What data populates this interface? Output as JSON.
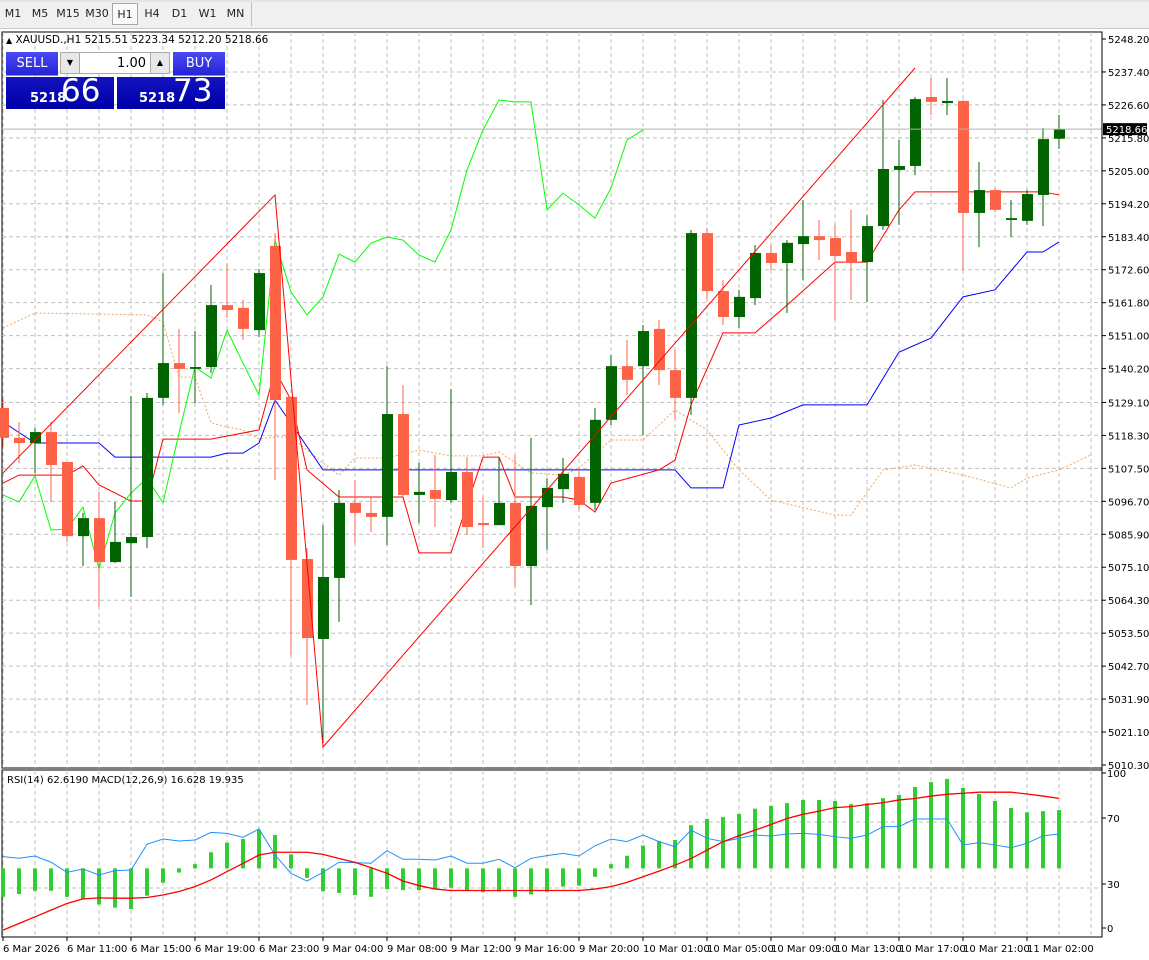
{
  "toolbar": {
    "timeframes": [
      "M1",
      "M5",
      "M15",
      "M30",
      "H1",
      "H4",
      "D1",
      "W1",
      "MN"
    ],
    "active": "H1"
  },
  "header": {
    "symbol": "XAUUSD.,H1",
    "open": "5215.51",
    "high": "5223.34",
    "low": "5212.20",
    "close": "5218.66",
    "collapse_icon": "triangle-up-icon"
  },
  "trade_panel": {
    "sell_label": "SELL",
    "buy_label": "BUY",
    "lot": "1.00",
    "sell_price_main": "5218",
    "sell_price_pips": "66",
    "buy_price_main": "5218",
    "buy_price_pips": "73"
  },
  "colors": {
    "bull": "#006400",
    "bear": "#FF6347",
    "panel_blue": "#0000c0",
    "zigzag": "#FF0000",
    "red_line": "#FF0000",
    "blue_line": "#0000FF",
    "green_line": "#00FF00",
    "orange_dotted": "#F4A460",
    "rsi": "#1E90FF",
    "macd_hist": "#32CD32",
    "macd_signal": "#FF0000"
  },
  "price_axis": {
    "labels": [
      "5248.20",
      "5237.40",
      "5226.60",
      "5215.80",
      "5205.00",
      "5194.20",
      "5183.40",
      "5172.60",
      "5161.80",
      "5151.00",
      "5140.20",
      "5129.10",
      "5118.30",
      "5107.50",
      "5096.70",
      "5085.90",
      "5075.10",
      "5064.30",
      "5053.50",
      "5042.70",
      "5031.90",
      "5021.10",
      "5010.30"
    ],
    "current_price": "5218.66",
    "range": [
      5010.3,
      5248.2
    ]
  },
  "time_axis": {
    "labels": [
      "6 Mar 2026",
      "6 Mar 11:00",
      "6 Mar 15:00",
      "6 Mar 19:00",
      "6 Mar 23:00",
      "9 Mar 04:00",
      "9 Mar 08:00",
      "9 Mar 12:00",
      "9 Mar 16:00",
      "9 Mar 20:00",
      "10 Mar 01:00",
      "10 Mar 05:00",
      "10 Mar 09:00",
      "10 Mar 13:00",
      "10 Mar 17:00",
      "10 Mar 21:00",
      "11 Mar 02:00"
    ],
    "label_every_bars": 4
  },
  "chart_data": {
    "type": "candlestick",
    "timeframe": "H1",
    "ohlc": [
      [
        5127.3,
        5130.2,
        5114.5,
        5117.5
      ],
      [
        5117.5,
        5122.7,
        5109.3,
        5115.8
      ],
      [
        5115.8,
        5120.7,
        5106.0,
        5119.4
      ],
      [
        5119.4,
        5122.7,
        5096.5,
        5108.6
      ],
      [
        5109.6,
        5109.6,
        5083.4,
        5085.3
      ],
      [
        5085.3,
        5092.9,
        5075.5,
        5091.2
      ],
      [
        5091.2,
        5099.8,
        5062.1,
        5076.8
      ],
      [
        5076.8,
        5096.5,
        5076.5,
        5083.4
      ],
      [
        5083.0,
        5131.2,
        5065.4,
        5085.0
      ],
      [
        5085.0,
        5132.2,
        5081.4,
        5130.6
      ],
      [
        5130.6,
        5171.5,
        5128.3,
        5142.0
      ],
      [
        5142.0,
        5153.2,
        5125.6,
        5140.1
      ],
      [
        5140.1,
        5152.5,
        5128.9,
        5140.7
      ],
      [
        5140.7,
        5167.6,
        5138.8,
        5161.0
      ],
      [
        5161.0,
        5174.5,
        5156.8,
        5159.4
      ],
      [
        5160.1,
        5162.7,
        5149.6,
        5153.2
      ],
      [
        5152.8,
        5172.8,
        5150.5,
        5171.5
      ],
      [
        5180.4,
        5184.6,
        5103.7,
        5129.9
      ],
      [
        5130.9,
        5130.9,
        5046.3,
        5077.5
      ],
      [
        5077.8,
        5081.4,
        5030.0,
        5051.9
      ],
      [
        5051.6,
        5088.9,
        5017.5,
        5071.9
      ],
      [
        5071.6,
        5100.4,
        5057.2,
        5096.2
      ],
      [
        5096.2,
        5103.7,
        5083.0,
        5092.9
      ],
      [
        5092.9,
        5098.4,
        5086.6,
        5091.6
      ],
      [
        5091.6,
        5141.0,
        5082.4,
        5125.3
      ],
      [
        5125.3,
        5134.8,
        5098.1,
        5098.8
      ],
      [
        5098.8,
        5109.3,
        5089.6,
        5099.8
      ],
      [
        5100.4,
        5111.9,
        5088.3,
        5097.5
      ],
      [
        5097.1,
        5133.5,
        5096.2,
        5106.3
      ],
      [
        5106.3,
        5111.2,
        5085.7,
        5088.3
      ],
      [
        5089.6,
        5098.4,
        5081.4,
        5088.9
      ],
      [
        5088.9,
        5111.2,
        5088.9,
        5096.2
      ],
      [
        5096.2,
        5111.9,
        5068.6,
        5075.5
      ],
      [
        5075.5,
        5117.5,
        5062.7,
        5095.2
      ],
      [
        5094.8,
        5104.3,
        5080.8,
        5101.1
      ],
      [
        5100.7,
        5110.9,
        5096.2,
        5105.7
      ],
      [
        5104.7,
        5107.0,
        5093.9,
        5095.5
      ],
      [
        5096.2,
        5127.3,
        5093.9,
        5123.4
      ],
      [
        5123.4,
        5144.6,
        5121.7,
        5141.0
      ],
      [
        5141.0,
        5149.6,
        5131.5,
        5136.5
      ],
      [
        5141.0,
        5154.5,
        5118.4,
        5152.5
      ],
      [
        5153.2,
        5156.1,
        5134.8,
        5139.7
      ],
      [
        5139.7,
        5146.3,
        5123.4,
        5130.6
      ],
      [
        5130.6,
        5185.6,
        5125.0,
        5184.6
      ],
      [
        5184.6,
        5186.3,
        5162.7,
        5165.6
      ],
      [
        5165.6,
        5169.2,
        5154.5,
        5157.1
      ],
      [
        5157.1,
        5166.0,
        5153.5,
        5163.7
      ],
      [
        5163.3,
        5180.7,
        5161.0,
        5178.1
      ],
      [
        5178.1,
        5180.7,
        5172.5,
        5174.8
      ],
      [
        5174.8,
        5182.3,
        5158.4,
        5181.4
      ],
      [
        5181.0,
        5195.4,
        5169.2,
        5183.6
      ],
      [
        5183.6,
        5188.9,
        5175.8,
        5182.3
      ],
      [
        5183.0,
        5187.3,
        5156.1,
        5177.1
      ],
      [
        5178.4,
        5192.2,
        5162.7,
        5175.1
      ],
      [
        5175.1,
        5190.5,
        5162.0,
        5186.9
      ],
      [
        5186.9,
        5228.2,
        5185.6,
        5205.6
      ],
      [
        5205.3,
        5215.1,
        5187.3,
        5206.6
      ],
      [
        5206.6,
        5229.2,
        5203.6,
        5228.5
      ],
      [
        5229.2,
        5235.4,
        5223.3,
        5227.6
      ],
      [
        5227.2,
        5235.4,
        5223.3,
        5227.9
      ],
      [
        5227.9,
        5228.2,
        5172.5,
        5191.2
      ],
      [
        5191.2,
        5207.9,
        5180.0,
        5198.7
      ],
      [
        5198.7,
        5199.4,
        5191.5,
        5192.2
      ],
      [
        5188.9,
        5195.4,
        5183.3,
        5189.5
      ],
      [
        5188.6,
        5198.7,
        5187.3,
        5197.4
      ],
      [
        5197.1,
        5219.0,
        5186.9,
        5215.4
      ],
      [
        5215.51,
        5223.34,
        5212.2,
        5218.66
      ]
    ],
    "overlays": {
      "zigzag": [
        [
          0,
          5106.0
        ],
        [
          17,
          5197.1
        ],
        [
          20,
          5016.2
        ],
        [
          57,
          5238.7
        ]
      ],
      "red_line": [
        [
          0,
          5102.7
        ],
        [
          1,
          5105.3
        ],
        [
          4,
          5105.3
        ],
        [
          5,
          5108.3
        ],
        [
          6,
          5102.1
        ],
        [
          8,
          5096.8
        ],
        [
          9,
          5096.8
        ],
        [
          10,
          5117.1
        ],
        [
          13,
          5117.1
        ],
        [
          16,
          5120.1
        ],
        [
          17,
          5139.7
        ],
        [
          18,
          5129.9
        ],
        [
          19,
          5107.0
        ],
        [
          21,
          5098.1
        ],
        [
          25,
          5098.1
        ],
        [
          26,
          5079.8
        ],
        [
          28,
          5079.8
        ],
        [
          30,
          5111.2
        ],
        [
          31,
          5111.2
        ],
        [
          32,
          5098.1
        ],
        [
          35,
          5098.1
        ],
        [
          36,
          5097.1
        ],
        [
          37,
          5093.2
        ],
        [
          38,
          5102.7
        ],
        [
          41,
          5107.0
        ],
        [
          42,
          5110.2
        ],
        [
          43,
          5128.3
        ],
        [
          45,
          5151.9
        ],
        [
          47,
          5151.9
        ],
        [
          49,
          5161.0
        ],
        [
          52,
          5175.1
        ],
        [
          54,
          5175.1
        ],
        [
          56,
          5192.2
        ],
        [
          57,
          5198.1
        ],
        [
          65,
          5198.1
        ],
        [
          66,
          5197.1
        ]
      ],
      "blue_line": [
        [
          0,
          5122.7
        ],
        [
          2,
          5115.8
        ],
        [
          6,
          5115.8
        ],
        [
          7,
          5111.2
        ],
        [
          13,
          5111.2
        ],
        [
          14,
          5112.5
        ],
        [
          15,
          5112.5
        ],
        [
          16,
          5115.8
        ],
        [
          17,
          5129.9
        ],
        [
          20,
          5107.0
        ],
        [
          42,
          5107.0
        ],
        [
          43,
          5101.1
        ],
        [
          45,
          5101.1
        ],
        [
          46,
          5121.7
        ],
        [
          48,
          5124.0
        ],
        [
          50,
          5128.3
        ],
        [
          54,
          5128.3
        ],
        [
          56,
          5145.6
        ],
        [
          58,
          5150.2
        ],
        [
          60,
          5163.7
        ],
        [
          62,
          5166.0
        ],
        [
          64,
          5178.4
        ],
        [
          65,
          5178.4
        ],
        [
          66,
          5181.7
        ]
      ],
      "green_line": [
        5098.8,
        5096.5,
        5105.0,
        5087.3,
        5087.6,
        5094.8,
        5074.5,
        5092.9,
        5099.4,
        5104.3,
        5096.2,
        5119.1,
        5140.7,
        5137.1,
        5152.8,
        5142.0,
        5131.5,
        5182.3,
        5165.3,
        5157.8,
        5163.7,
        5177.7,
        5175.1,
        5181.3,
        5183.3,
        5182.3,
        5177.4,
        5175.1,
        5185.6,
        5205.3,
        5218.4,
        5228.2,
        5227.6,
        5227.6,
        5192.2,
        5197.7,
        5193.8,
        5189.5,
        5199.4,
        5215.1,
        5218.4
      ],
      "orange_dotted": [
        [
          0,
          5153.5
        ],
        [
          2,
          5158.4
        ],
        [
          9,
          5157.8
        ],
        [
          10,
          5155.5
        ],
        [
          11,
          5137.4
        ],
        [
          12,
          5137.4
        ],
        [
          13,
          5122.4
        ],
        [
          14,
          5121.1
        ],
        [
          15,
          5120.1
        ],
        [
          16,
          5117.1
        ],
        [
          17,
          5117.8
        ],
        [
          18,
          5117.8
        ],
        [
          20,
          5109.3
        ],
        [
          21,
          5105.3
        ],
        [
          22,
          5110.9
        ],
        [
          24,
          5110.9
        ],
        [
          26,
          5113.5
        ],
        [
          28,
          5111.6
        ],
        [
          30,
          5111.6
        ],
        [
          31,
          5112.9
        ],
        [
          33,
          5106.0
        ],
        [
          35,
          5105.3
        ],
        [
          36,
          5107.6
        ],
        [
          38,
          5116.8
        ],
        [
          40,
          5116.8
        ],
        [
          42,
          5126.6
        ],
        [
          44,
          5120.1
        ],
        [
          46,
          5107.0
        ],
        [
          48,
          5097.1
        ],
        [
          52,
          5092.2
        ],
        [
          53,
          5092.2
        ],
        [
          55,
          5107.0
        ],
        [
          57,
          5108.6
        ],
        [
          60,
          5105.3
        ],
        [
          63,
          5101.1
        ],
        [
          64,
          5104.3
        ],
        [
          66,
          5107.0
        ],
        [
          68,
          5111.9
        ]
      ]
    },
    "subwindow": {
      "label": "RSI(14) 62.6190  MACD(12,26,9) 16.628 19.935",
      "axis_labels": [
        "100",
        "70",
        "30",
        "0"
      ],
      "rsi": [
        49.0,
        48.0,
        49.4,
        45.6,
        39.5,
        41.5,
        37.9,
        40.5,
        40.9,
        56.5,
        59.7,
        58.5,
        59.1,
        63.7,
        63.1,
        60.7,
        65.8,
        50.0,
        38.9,
        34.2,
        39.5,
        45.6,
        45.4,
        45.0,
        52.6,
        47.4,
        47.4,
        47.0,
        49.4,
        45.0,
        45.0,
        47.4,
        42.3,
        48.0,
        49.6,
        51.0,
        49.4,
        55.6,
        59.7,
        58.1,
        62.1,
        58.1,
        55.0,
        65.1,
        60.1,
        58.1,
        60.1,
        62.1,
        61.5,
        62.7,
        63.1,
        62.5,
        61.1,
        60.1,
        62.1,
        67.2,
        67.2,
        71.8,
        71.8,
        71.8,
        56.1,
        57.5,
        56.1,
        54.4,
        57.1,
        61.7,
        62.619
      ],
      "macd_main": [
        -8.1,
        -7.3,
        -6.4,
        -6.4,
        -8.1,
        -8.8,
        -10.3,
        -11.2,
        -11.6,
        -7.8,
        -4.1,
        -1.2,
        1.2,
        4.6,
        7.3,
        8.4,
        10.9,
        9.5,
        4.0,
        -2.7,
        -6.5,
        -7.0,
        -7.6,
        -8.1,
        -5.9,
        -6.2,
        -6.2,
        -5.9,
        -5.5,
        -6.2,
        -6.8,
        -6.6,
        -8.1,
        -7.4,
        -6.6,
        -5.2,
        -4.9,
        -2.4,
        1.2,
        3.6,
        6.5,
        7.8,
        8.1,
        12.3,
        14.1,
        14.6,
        15.5,
        17.0,
        17.8,
        18.6,
        19.5,
        19.5,
        19.2,
        18.3,
        18.6,
        20.0,
        20.9,
        23.2,
        24.6,
        25.5,
        22.9,
        21.2,
        19.2,
        17.2,
        16.0,
        16.3,
        16.628
      ],
      "macd_signal": [
        -17.6,
        -15.7,
        -13.8,
        -11.9,
        -10.0,
        -8.7,
        -8.4,
        -8.5,
        -8.5,
        -8.3,
        -7.6,
        -6.6,
        -5.2,
        -3.3,
        -0.9,
        1.4,
        3.8,
        4.6,
        4.6,
        4.6,
        4.0,
        2.8,
        1.7,
        0.2,
        -1.4,
        -3.6,
        -4.9,
        -5.9,
        -6.3,
        -6.3,
        -6.3,
        -6.3,
        -6.3,
        -6.3,
        -6.3,
        -6.3,
        -6.3,
        -5.9,
        -5.2,
        -4.0,
        -2.4,
        -0.8,
        0.9,
        2.8,
        5.2,
        7.6,
        9.3,
        10.9,
        12.5,
        14.2,
        15.4,
        16.3,
        17.3,
        17.6,
        18.2,
        18.7,
        19.5,
        19.9,
        20.6,
        21.1,
        21.4,
        21.7,
        21.7,
        21.7,
        21.2,
        20.6,
        19.935
      ]
    },
    "grid": true
  }
}
